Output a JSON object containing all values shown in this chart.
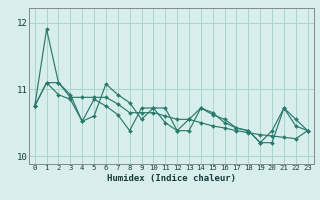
{
  "xlabel": "Humidex (Indice chaleur)",
  "background_color": "#d7eeec",
  "grid_color": "#aad4cf",
  "line_color": "#2a7a6a",
  "xlim": [
    -0.5,
    23.5
  ],
  "ylim": [
    9.88,
    12.22
  ],
  "yticks": [
    10,
    11,
    12
  ],
  "xticks": [
    0,
    1,
    2,
    3,
    4,
    5,
    6,
    7,
    8,
    9,
    10,
    11,
    12,
    13,
    14,
    15,
    16,
    17,
    18,
    19,
    20,
    21,
    22,
    23
  ],
  "series": [
    [
      10.75,
      11.9,
      11.1,
      10.92,
      10.52,
      10.6,
      11.08,
      10.92,
      10.8,
      10.55,
      10.72,
      10.72,
      10.38,
      10.55,
      10.72,
      10.65,
      10.5,
      10.42,
      10.38,
      10.2,
      10.38,
      10.72,
      10.55,
      10.38
    ],
    [
      10.75,
      11.1,
      11.1,
      10.88,
      10.88,
      10.88,
      10.88,
      10.78,
      10.65,
      10.65,
      10.65,
      10.6,
      10.55,
      10.55,
      10.5,
      10.45,
      10.42,
      10.38,
      10.35,
      10.32,
      10.3,
      10.28,
      10.26,
      10.38
    ],
    [
      10.75,
      11.1,
      10.92,
      10.85,
      10.52,
      10.85,
      10.75,
      10.62,
      10.38,
      10.72,
      10.72,
      10.5,
      10.38,
      10.38,
      10.72,
      10.62,
      10.55,
      10.42,
      10.38,
      10.2,
      10.2,
      10.72,
      10.45,
      10.38
    ]
  ]
}
